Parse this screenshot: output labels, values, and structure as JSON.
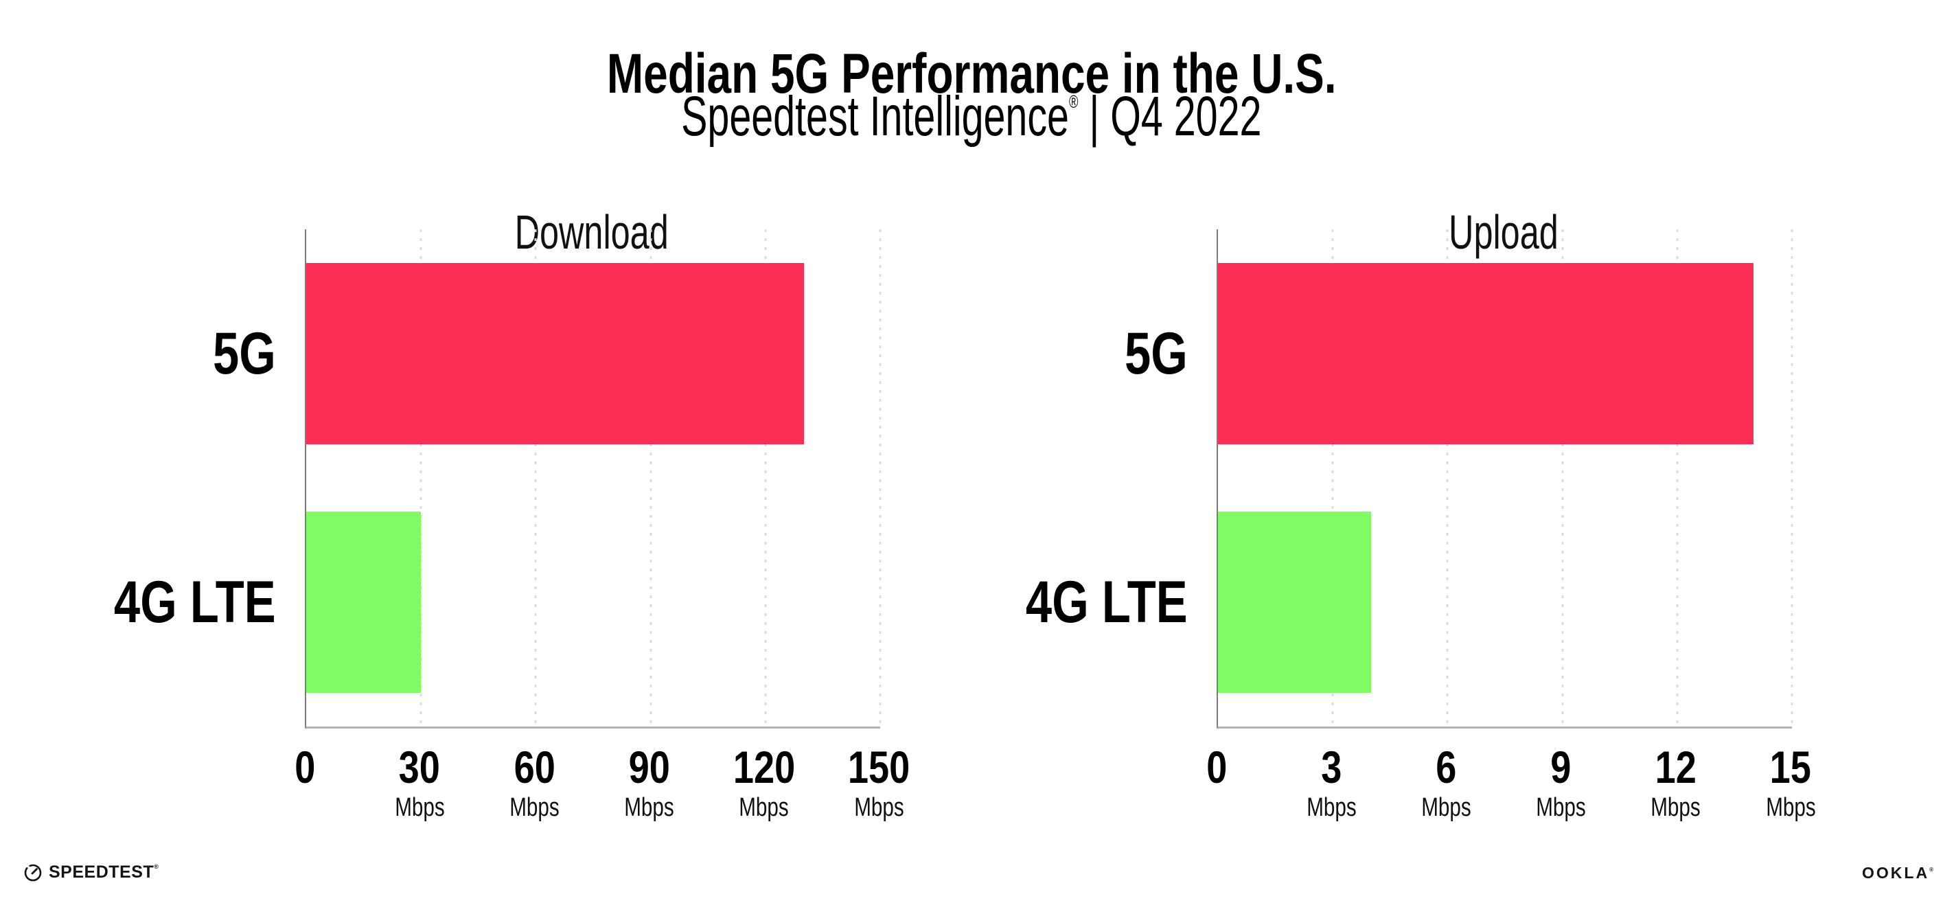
{
  "header": {
    "title": "Median 5G Performance in the U.S.",
    "subtitle_brand": "Speedtest Intelligence",
    "subtitle_mark": "®",
    "subtitle_rest": " | Q4 2022"
  },
  "chart_data": [
    {
      "type": "bar",
      "orientation": "horizontal",
      "title": "Download",
      "categories": [
        "5G",
        "4G LTE"
      ],
      "values": [
        130,
        30
      ],
      "unit": "Mbps",
      "xlim": [
        0,
        150
      ],
      "xticks": [
        0,
        30,
        60,
        90,
        120,
        150
      ],
      "bar_colors": [
        "#fd2e56",
        "#80fb63"
      ],
      "grid": "vertical-dotted",
      "legend": "none"
    },
    {
      "type": "bar",
      "orientation": "horizontal",
      "title": "Upload",
      "categories": [
        "5G",
        "4G LTE"
      ],
      "values": [
        14,
        4
      ],
      "unit": "Mbps",
      "xlim": [
        0,
        15
      ],
      "xticks": [
        0,
        3,
        6,
        9,
        12,
        15
      ],
      "bar_colors": [
        "#fd2e56",
        "#80fb63"
      ],
      "grid": "vertical-dotted",
      "legend": "none"
    }
  ],
  "footer": {
    "speedtest_label": "SPEEDTEST",
    "speedtest_mark": "®",
    "ookla_label": "OOKLA",
    "ookla_mark": "®"
  },
  "colors": {
    "bar_5g": "#fd2e56",
    "bar_4g_lte": "#80fb63",
    "gridline": "#d9dbe7",
    "logo_ink": "#141414"
  }
}
